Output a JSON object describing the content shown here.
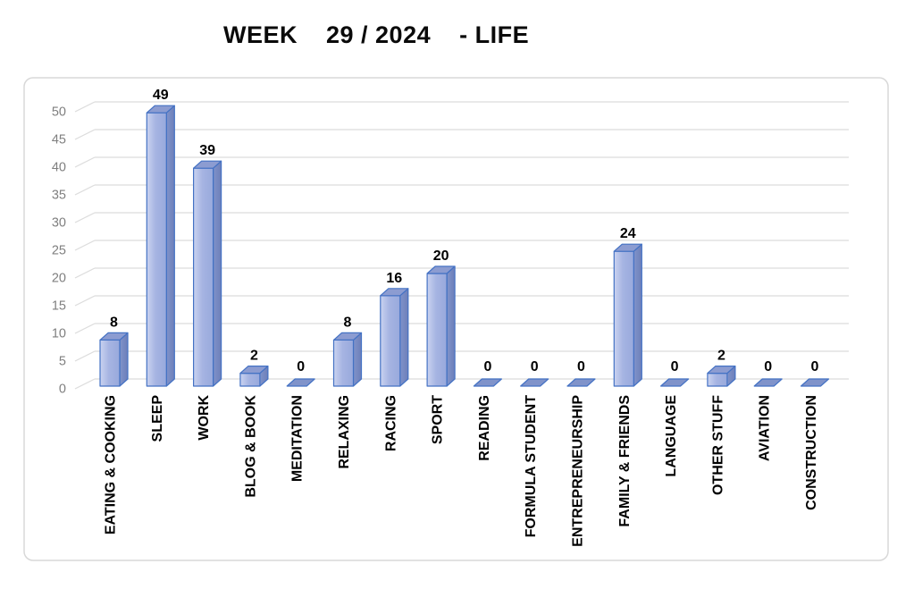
{
  "header": {
    "title": "WEEK    29 / 2024    - LIFE"
  },
  "chart_data": {
    "type": "bar",
    "variant": "3d-column",
    "title": "WEEK 29 / 2024 - LIFE",
    "categories": [
      "EATING & COOKING",
      "SLEEP",
      "WORK",
      "BLOG & BOOK",
      "MEDITATION",
      "RELAXING",
      "RACING",
      "SPORT",
      "READING",
      "FORMULA STUDENT",
      "ENTREPRENEURSHIP",
      "FAMILY & FRIENDS",
      "LANGUAGE",
      "OTHER STUFF",
      "AVIATION",
      "CONSTRUCTION"
    ],
    "values": [
      8,
      49,
      39,
      2,
      0,
      8,
      16,
      20,
      0,
      0,
      0,
      24,
      0,
      2,
      0,
      0
    ],
    "xlabel": "",
    "ylabel": "",
    "ylim": [
      0,
      50
    ],
    "yticks": [
      0,
      5,
      10,
      15,
      20,
      25,
      30,
      35,
      40,
      45,
      50
    ],
    "grid": true,
    "data_labels": true,
    "legend": "none",
    "colors": {
      "bar_front_light": "#CAD3F0",
      "bar_front": "#A6B4E2",
      "bar_front_dark": "#98A9DC",
      "bar_side": "#8093CA",
      "bar_side_dark": "#6D7FB9",
      "bar_top": "#8C9CD1",
      "bar_outline": "#4472C4",
      "gridline": "#DCDCDC",
      "axis_text": "#7F7F7F",
      "label_text": "#000000",
      "frame_border": "#D8D8D8",
      "background": "#FFFFFF"
    }
  }
}
